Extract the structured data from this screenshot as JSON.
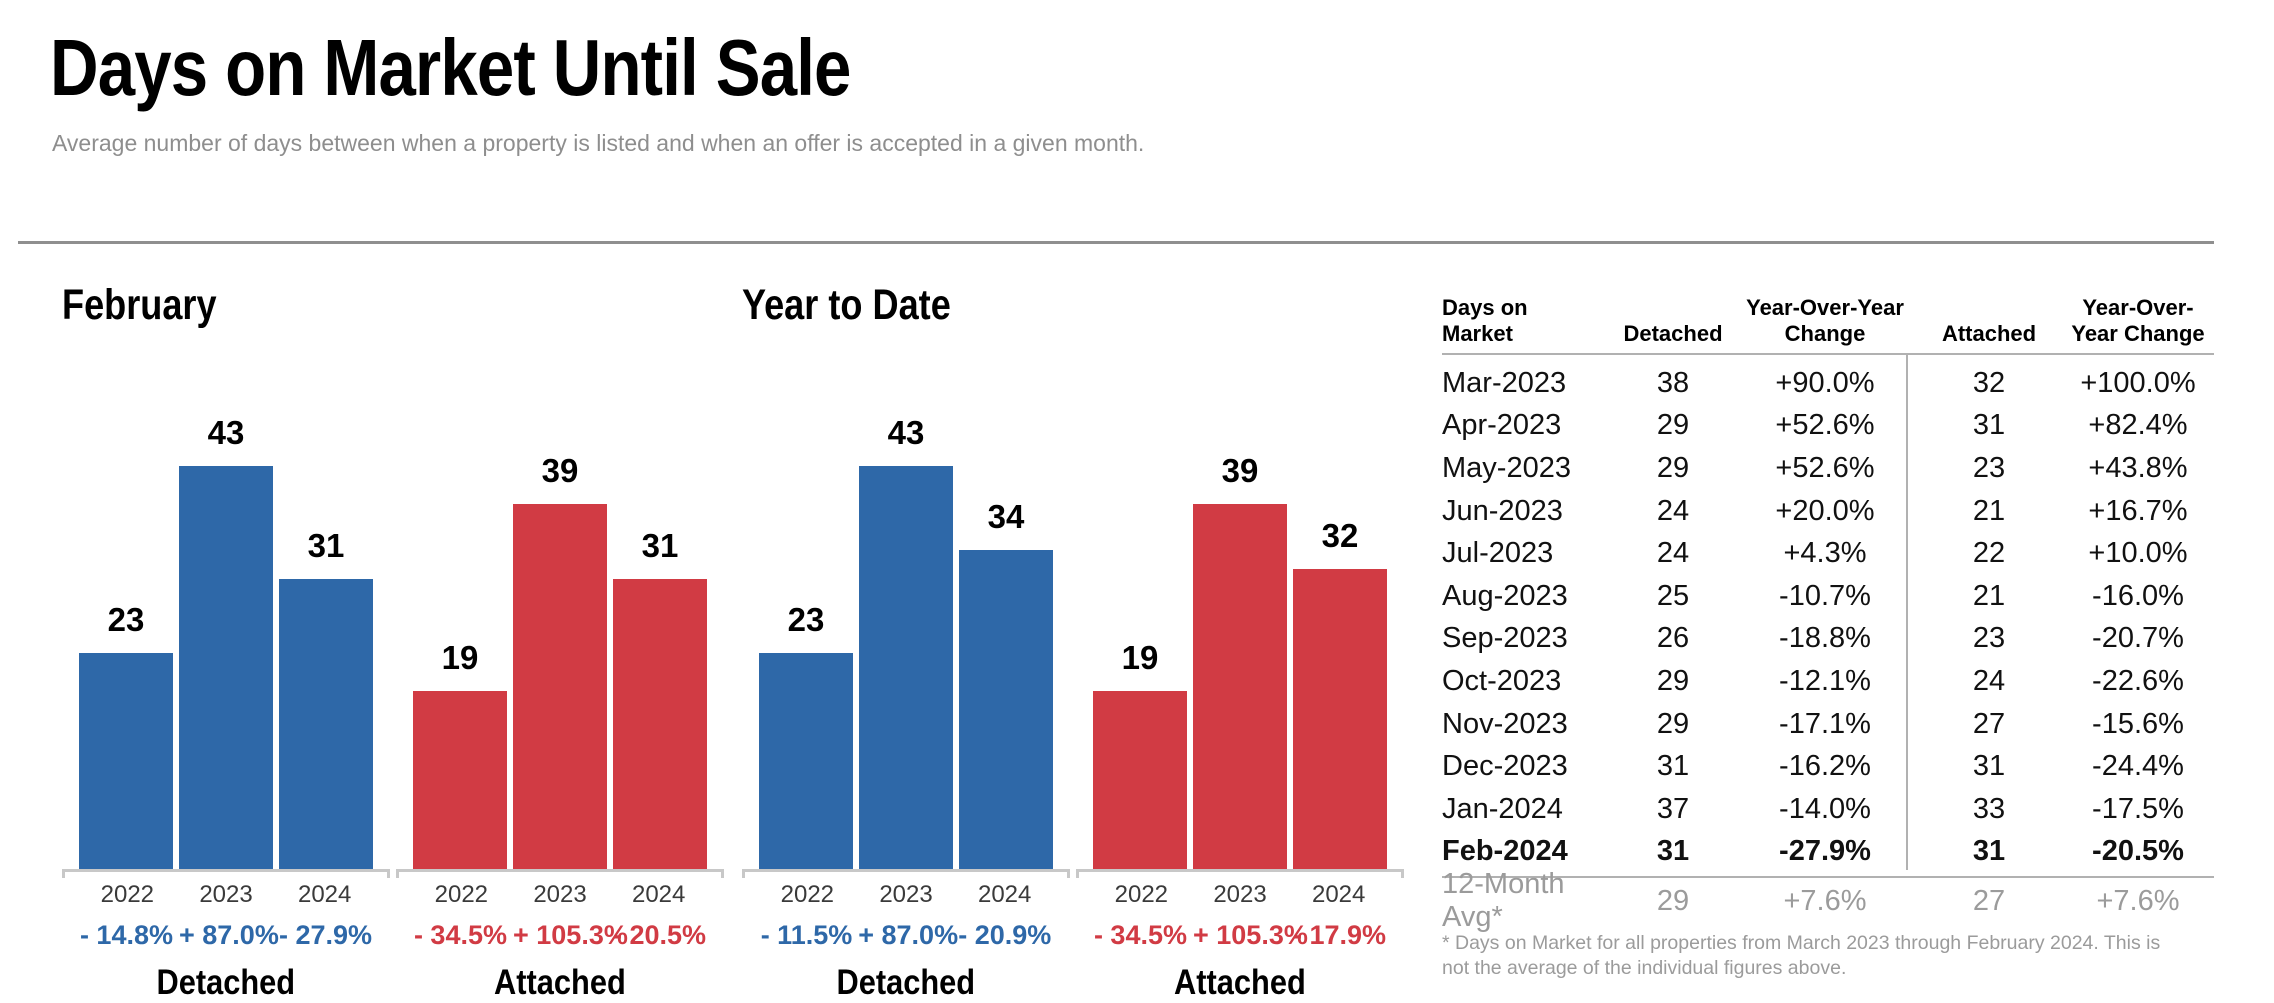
{
  "page": {
    "title": "Days on Market Until Sale",
    "subtitle": "Average number of days between when a property is listed and when an offer is accepted in a given month."
  },
  "colors": {
    "detached": "#2e68a8",
    "attached": "#d13b44",
    "axis": "#c8c8c8"
  },
  "chart_data": [
    {
      "type": "bar",
      "title": "February",
      "ylim": [
        0,
        45
      ],
      "categories": [
        "2022",
        "2023",
        "2024"
      ],
      "groups": [
        {
          "label": "Detached",
          "color": "#2e68a8",
          "values": [
            23,
            43,
            31
          ],
          "changes": [
            "- 14.8%",
            "+ 87.0%",
            "- 27.9%"
          ]
        },
        {
          "label": "Attached",
          "color": "#d13b44",
          "values": [
            19,
            39,
            31
          ],
          "changes": [
            "- 34.5%",
            "+ 105.3%",
            "- 20.5%"
          ]
        }
      ]
    },
    {
      "type": "bar",
      "title": "Year to Date",
      "ylim": [
        0,
        45
      ],
      "categories": [
        "2022",
        "2023",
        "2024"
      ],
      "groups": [
        {
          "label": "Detached",
          "color": "#2e68a8",
          "values": [
            23,
            43,
            34
          ],
          "changes": [
            "- 11.5%",
            "+ 87.0%",
            "- 20.9%"
          ]
        },
        {
          "label": "Attached",
          "color": "#d13b44",
          "values": [
            19,
            39,
            32
          ],
          "changes": [
            "- 34.5%",
            "+ 105.3%",
            "- 17.9%"
          ]
        }
      ]
    }
  ],
  "table": {
    "headers": [
      "Days on Market",
      "Detached",
      "Year-Over-Year Change",
      "Attached",
      "Year-Over-Year Change"
    ],
    "rows": [
      {
        "month": "Mar-2023",
        "detached": "38",
        "detached_change": "+90.0%",
        "attached": "32",
        "attached_change": "+100.0%",
        "bold": false
      },
      {
        "month": "Apr-2023",
        "detached": "29",
        "detached_change": "+52.6%",
        "attached": "31",
        "attached_change": "+82.4%",
        "bold": false
      },
      {
        "month": "May-2023",
        "detached": "29",
        "detached_change": "+52.6%",
        "attached": "23",
        "attached_change": "+43.8%",
        "bold": false
      },
      {
        "month": "Jun-2023",
        "detached": "24",
        "detached_change": "+20.0%",
        "attached": "21",
        "attached_change": "+16.7%",
        "bold": false
      },
      {
        "month": "Jul-2023",
        "detached": "24",
        "detached_change": "+4.3%",
        "attached": "22",
        "attached_change": "+10.0%",
        "bold": false
      },
      {
        "month": "Aug-2023",
        "detached": "25",
        "detached_change": "-10.7%",
        "attached": "21",
        "attached_change": "-16.0%",
        "bold": false
      },
      {
        "month": "Sep-2023",
        "detached": "26",
        "detached_change": "-18.8%",
        "attached": "23",
        "attached_change": "-20.7%",
        "bold": false
      },
      {
        "month": "Oct-2023",
        "detached": "29",
        "detached_change": "-12.1%",
        "attached": "24",
        "attached_change": "-22.6%",
        "bold": false
      },
      {
        "month": "Nov-2023",
        "detached": "29",
        "detached_change": "-17.1%",
        "attached": "27",
        "attached_change": "-15.6%",
        "bold": false
      },
      {
        "month": "Dec-2023",
        "detached": "31",
        "detached_change": "-16.2%",
        "attached": "31",
        "attached_change": "-24.4%",
        "bold": false
      },
      {
        "month": "Jan-2024",
        "detached": "37",
        "detached_change": "-14.0%",
        "attached": "33",
        "attached_change": "-17.5%",
        "bold": false
      },
      {
        "month": "Feb-2024",
        "detached": "31",
        "detached_change": "-27.9%",
        "attached": "31",
        "attached_change": "-20.5%",
        "bold": true
      }
    ],
    "summary": {
      "month": "12-Month Avg*",
      "detached": "29",
      "detached_change": "+7.6%",
      "attached": "27",
      "attached_change": "+7.6%"
    },
    "footnote": "* Days on Market for all properties from March 2023 through February 2024. This is not the average of the individual figures above."
  }
}
